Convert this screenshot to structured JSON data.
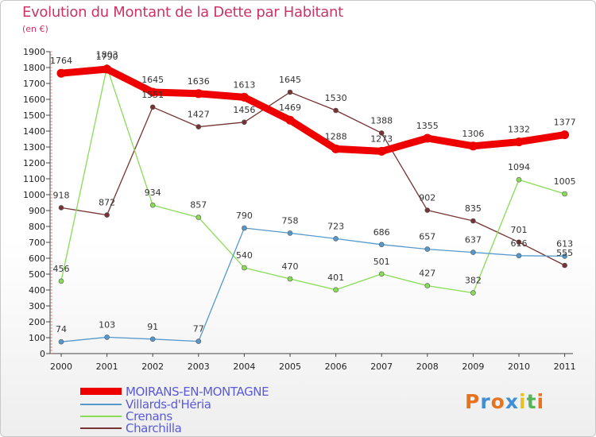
{
  "title": "Evolution du Montant de la Dette par Habitant",
  "subtitle": "(en €)",
  "logo": {
    "letters": [
      "P",
      "r",
      "o",
      "x",
      "i",
      "t",
      "i"
    ],
    "colors": [
      "#e8731f",
      "#3f8fd6",
      "#e8731f",
      "#3f8fd6",
      "#e8c21f",
      "#56b656",
      "#e8731f"
    ]
  },
  "chart_data": {
    "type": "line",
    "x": [
      "2000",
      "2001",
      "2002",
      "2003",
      "2004",
      "2005",
      "2006",
      "2007",
      "2008",
      "2009",
      "2010",
      "2011"
    ],
    "ylim": [
      0,
      1900
    ],
    "yticks": [
      "0",
      "100",
      "200",
      "300",
      "400",
      "500",
      "600",
      "700",
      "800",
      "900",
      "1000",
      "1100",
      "1200",
      "1300",
      "1400",
      "1500",
      "1600",
      "1700",
      "1800",
      "1900"
    ],
    "grid": false,
    "legend_position": "bottom-left",
    "series": [
      {
        "name": "MOIRANS-EN-MONTAGNE",
        "color": "#ee0000",
        "values": [
          1764,
          1790,
          1645,
          1636,
          1613,
          1469,
          1288,
          1273,
          1355,
          1306,
          1332,
          1377
        ]
      },
      {
        "name": "Villards-d'Héria",
        "color": "#5599cc",
        "values": [
          74,
          103,
          91,
          77,
          790,
          758,
          723,
          686,
          657,
          637,
          616,
          613
        ]
      },
      {
        "name": "Crenans",
        "color": "#88dd55",
        "values": [
          456,
          1803,
          934,
          857,
          540,
          470,
          401,
          501,
          427,
          382,
          1094,
          1005
        ]
      },
      {
        "name": "Charchilla",
        "color": "#773333",
        "values": [
          918,
          872,
          1551,
          1427,
          1456,
          1645,
          1530,
          1388,
          902,
          835,
          701,
          555
        ]
      }
    ]
  }
}
